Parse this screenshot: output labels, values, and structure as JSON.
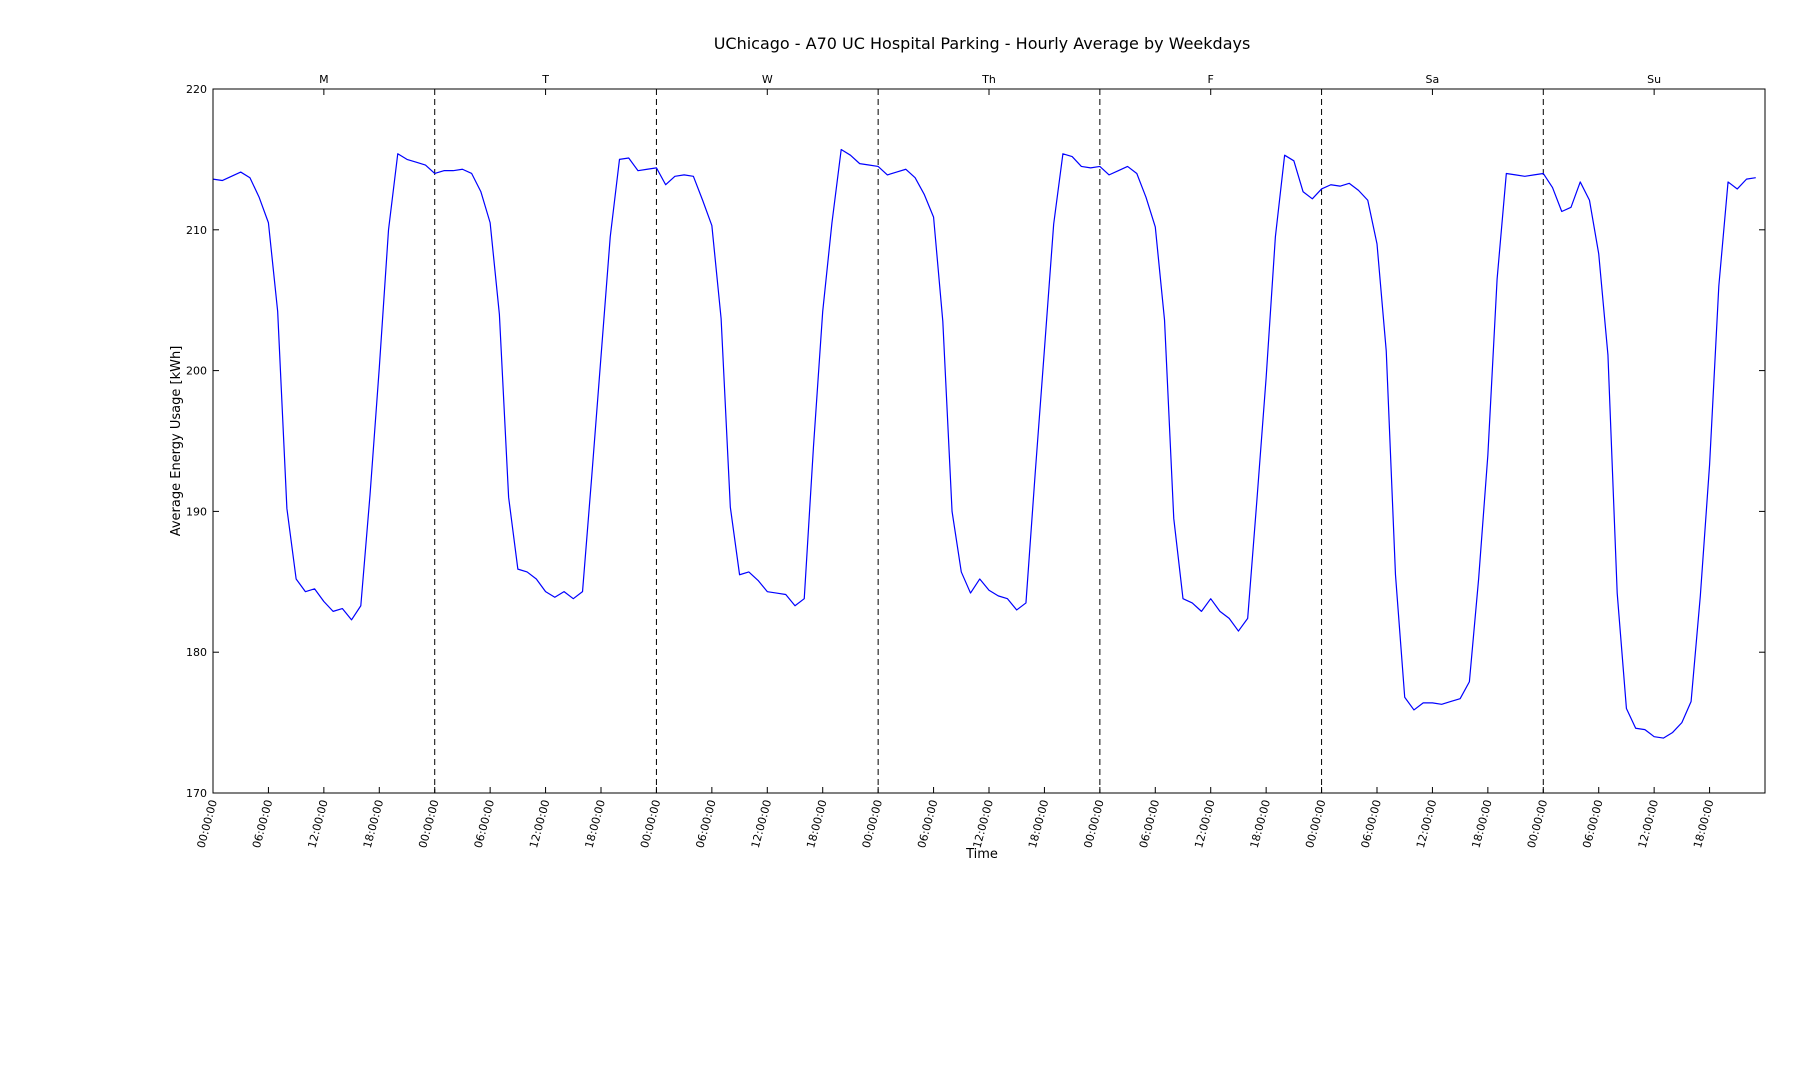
{
  "chart_data": {
    "type": "line",
    "title": "UChicago - A70 UC Hospital Parking - Hourly Average by Weekdays",
    "xlabel": "Time",
    "ylabel": "Average Energy Usage [kWh]",
    "ylim": [
      170,
      220
    ],
    "yticks": [
      170,
      180,
      190,
      200,
      210,
      220
    ],
    "xlim_hours": [
      0,
      168
    ],
    "xtick_labels": [
      "00:00:00",
      "06:00:00",
      "12:00:00",
      "18:00:00"
    ],
    "day_labels": [
      "M",
      "T",
      "W",
      "Th",
      "F",
      "Sa",
      "Su"
    ],
    "day_separators": "dashed",
    "grid": false,
    "line_color": "#0000ff",
    "series": [
      {
        "values": [
          213.6,
          213.5,
          213.8,
          214.1,
          213.7,
          212.3,
          210.5,
          204.2,
          190.2,
          185.2,
          184.3,
          184.5,
          183.6,
          182.9,
          183.1,
          182.3,
          183.3,
          191.2,
          200.2,
          210.0,
          215.4,
          215.0,
          214.8,
          214.6,
          214.0,
          214.2,
          214.2,
          214.3,
          214.0,
          212.7,
          210.5,
          204.0,
          191.0,
          185.9,
          185.7,
          185.2,
          184.3,
          183.9,
          184.3,
          183.8,
          184.3,
          192.5,
          201.0,
          209.5,
          215.0,
          215.1,
          214.2,
          214.3,
          214.4,
          213.2,
          213.8,
          213.9,
          213.8,
          212.1,
          210.3,
          203.7,
          190.3,
          185.5,
          185.7,
          185.1,
          184.3,
          184.2,
          184.1,
          183.3,
          183.8,
          194.6,
          204.2,
          210.5,
          215.7,
          215.3,
          214.7,
          214.6,
          214.5,
          213.9,
          214.1,
          214.3,
          213.7,
          212.5,
          210.9,
          203.5,
          190.0,
          185.7,
          184.2,
          185.2,
          184.4,
          184.0,
          183.8,
          183.0,
          183.5,
          192.7,
          201.5,
          210.4,
          215.4,
          215.2,
          214.5,
          214.4,
          214.5,
          213.9,
          214.2,
          214.5,
          214.0,
          212.3,
          210.2,
          203.6,
          189.5,
          183.8,
          183.5,
          182.9,
          183.8,
          182.9,
          182.4,
          181.5,
          182.4,
          190.8,
          199.5,
          209.5,
          215.3,
          214.9,
          212.7,
          212.2,
          212.9,
          213.2,
          213.1,
          213.3,
          212.8,
          212.1,
          209.0,
          201.4,
          185.5,
          176.8,
          175.9,
          176.4,
          176.4,
          176.3,
          176.5,
          176.7,
          177.9,
          185.2,
          194.0,
          206.5,
          214.0,
          213.9,
          213.8,
          213.9,
          214.0,
          213.0,
          211.3,
          211.6,
          213.4,
          212.1,
          208.3,
          201.1,
          184.2,
          176.0,
          174.6,
          174.5,
          174.0,
          173.9,
          174.3,
          175.0,
          176.5,
          184.0,
          193.3,
          206.0,
          213.4,
          212.9,
          213.6,
          213.7
        ]
      }
    ]
  }
}
